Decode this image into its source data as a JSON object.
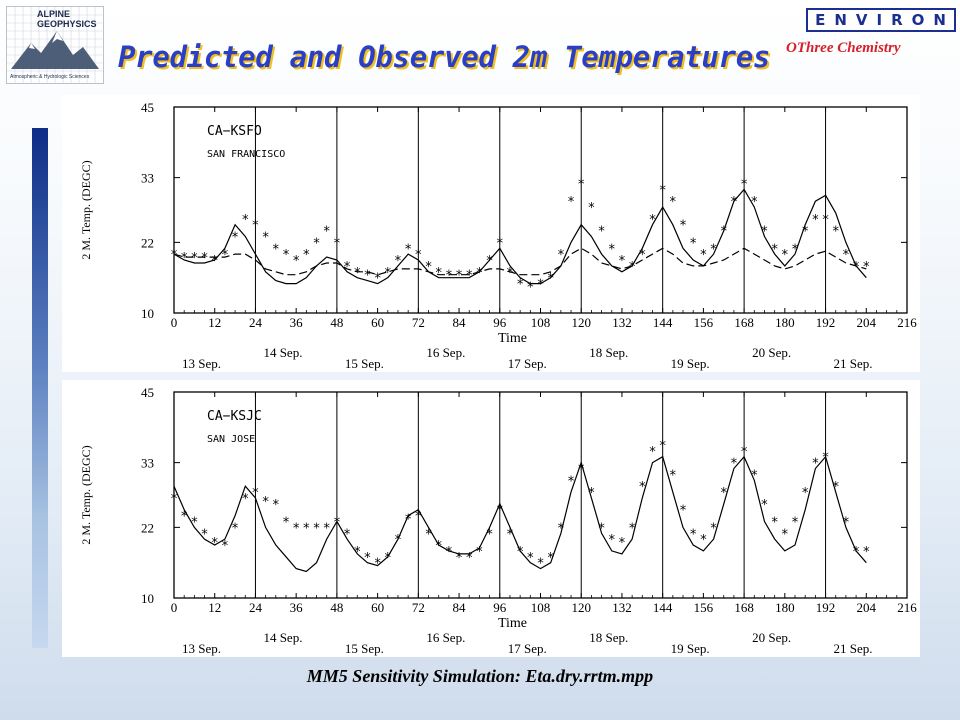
{
  "header": {
    "title": "Predicted and Observed 2m Temperatures",
    "left_logo_line1": "ALPINE",
    "left_logo_line2": "GEOPHYSICS",
    "left_logo_tagline": "Atmospheric & Hydrologic Sciences",
    "right_logo": "ENVIRON",
    "right_subtitle": "OThree Chemistry"
  },
  "footer": {
    "caption": "MM5 Sensitivity Simulation:  Eta.dry.rrtm.mpp"
  },
  "colors": {
    "title": "#2a3fc5",
    "title_shadow": "#f0bf20",
    "environ": "#1c2f8f",
    "othree": "#d6202a"
  },
  "chart_data": [
    {
      "type": "line",
      "station": "CA−KSFO",
      "station_name": "SAN FRANCISCO",
      "xlabel": "Time",
      "ylabel": "2 M. Temp. (DEGC)",
      "xlim": [
        0,
        216
      ],
      "ylim": [
        10,
        45
      ],
      "x_ticks": [
        0,
        12,
        24,
        36,
        48,
        60,
        72,
        84,
        96,
        108,
        120,
        132,
        144,
        156,
        168,
        180,
        192,
        204,
        216
      ],
      "y_ticks": [
        10,
        22,
        33,
        45
      ],
      "day_lines": [
        24,
        48,
        72,
        96,
        120,
        144,
        168,
        192
      ],
      "date_labels": [
        {
          "label": "13 Sep.",
          "x": 0,
          "row": 1
        },
        {
          "label": "14 Sep.",
          "x": 24,
          "row": 0
        },
        {
          "label": "15 Sep.",
          "x": 48,
          "row": 1
        },
        {
          "label": "16 Sep.",
          "x": 72,
          "row": 0
        },
        {
          "label": "17 Sep.",
          "x": 96,
          "row": 1
        },
        {
          "label": "18 Sep.",
          "x": 120,
          "row": 0
        },
        {
          "label": "19 Sep.",
          "x": 144,
          "row": 1
        },
        {
          "label": "20 Sep.",
          "x": 168,
          "row": 0
        },
        {
          "label": "21 Sep.",
          "x": 192,
          "row": 1
        }
      ],
      "series": [
        {
          "style": "solid",
          "x": [
            0,
            3,
            6,
            9,
            12,
            15,
            18,
            21,
            24,
            27,
            30,
            33,
            36,
            39,
            42,
            45,
            48,
            51,
            54,
            57,
            60,
            63,
            66,
            69,
            72,
            75,
            78,
            81,
            84,
            87,
            90,
            93,
            96,
            99,
            102,
            105,
            108,
            111,
            114,
            117,
            120,
            123,
            126,
            129,
            132,
            135,
            138,
            141,
            144,
            147,
            150,
            153,
            156,
            159,
            162,
            165,
            168,
            171,
            174,
            177,
            180,
            183,
            186,
            189,
            192,
            195,
            198,
            201,
            204
          ],
          "y": [
            20,
            19,
            18.5,
            18.5,
            19,
            21,
            25,
            23,
            20,
            17,
            15.5,
            15,
            15,
            16,
            18,
            19.5,
            19,
            17,
            16,
            15.5,
            15,
            16,
            18,
            20,
            19,
            17,
            16,
            16,
            16,
            16,
            17,
            19,
            21,
            18,
            16,
            15,
            15,
            16,
            18,
            22,
            25,
            23,
            20,
            18,
            17,
            18,
            21,
            25,
            28,
            25,
            21,
            19,
            18,
            20,
            24,
            29,
            31,
            28,
            23,
            20,
            18,
            20,
            25,
            29,
            30,
            27,
            22,
            18,
            16
          ]
        },
        {
          "style": "dashed",
          "x": [
            0,
            3,
            6,
            9,
            12,
            15,
            18,
            21,
            24,
            27,
            30,
            33,
            36,
            39,
            42,
            45,
            48,
            51,
            54,
            57,
            60,
            63,
            66,
            69,
            72,
            75,
            78,
            81,
            84,
            87,
            90,
            93,
            96,
            99,
            102,
            105,
            108,
            111,
            114,
            117,
            120,
            123,
            126,
            129,
            132,
            135,
            138,
            141,
            144,
            147,
            150,
            153,
            156,
            159,
            162,
            165,
            168,
            171,
            174,
            177,
            180,
            183,
            186,
            189,
            192,
            195,
            198,
            201,
            204
          ],
          "y": [
            20,
            19.5,
            19.5,
            19.5,
            19.5,
            19.5,
            20,
            20,
            19,
            17.5,
            17,
            16.5,
            16.5,
            17,
            18,
            18.5,
            18.5,
            17.5,
            17,
            17,
            16.5,
            17,
            17.5,
            17.5,
            17.5,
            17,
            16.5,
            16.5,
            16.5,
            16.5,
            17,
            17.5,
            17.5,
            17,
            16.5,
            16.5,
            16.5,
            17,
            18,
            20,
            21,
            20,
            18.5,
            18,
            17.5,
            18,
            19,
            20,
            21,
            20,
            18.5,
            18,
            18,
            18.5,
            19,
            20,
            21,
            20,
            19,
            18,
            17.5,
            18,
            19,
            20,
            20.5,
            19.5,
            18.5,
            18,
            17.5
          ]
        },
        {
          "style": "markers",
          "x": [
            0,
            3,
            6,
            9,
            12,
            15,
            18,
            21,
            24,
            27,
            30,
            33,
            36,
            39,
            42,
            45,
            48,
            51,
            54,
            57,
            60,
            63,
            66,
            69,
            72,
            75,
            78,
            81,
            84,
            87,
            90,
            93,
            96,
            99,
            102,
            105,
            108,
            111,
            114,
            117,
            120,
            123,
            126,
            129,
            132,
            135,
            138,
            141,
            144,
            147,
            150,
            153,
            156,
            159,
            162,
            165,
            168,
            171,
            174,
            177,
            180,
            183,
            186,
            189,
            192,
            195,
            198,
            201,
            204
          ],
          "y": [
            20,
            19.5,
            19.5,
            19.5,
            19,
            20,
            23,
            26,
            25,
            23,
            21,
            20,
            19,
            20,
            22,
            24,
            22,
            18,
            17,
            16.5,
            16,
            17,
            19,
            21,
            20,
            18,
            17,
            16.5,
            16.5,
            16.5,
            17,
            19,
            22,
            17,
            15,
            14.5,
            15,
            16,
            20,
            29,
            32,
            28,
            24,
            21,
            19,
            18,
            20,
            26,
            31,
            29,
            25,
            22,
            20,
            21,
            24,
            29,
            32,
            29,
            24,
            21,
            20,
            21,
            24,
            26,
            26,
            24,
            20,
            18,
            18
          ]
        }
      ]
    },
    {
      "type": "line",
      "station": "CA−KSJC",
      "station_name": "SAN JOSE",
      "xlabel": "Time",
      "ylabel": "2 M. Temp. (DEGC)",
      "xlim": [
        0,
        216
      ],
      "ylim": [
        10,
        45
      ],
      "x_ticks": [
        0,
        12,
        24,
        36,
        48,
        60,
        72,
        84,
        96,
        108,
        120,
        132,
        144,
        156,
        168,
        180,
        192,
        204,
        216
      ],
      "y_ticks": [
        10,
        22,
        33,
        45
      ],
      "day_lines": [
        24,
        48,
        72,
        96,
        120,
        144,
        168,
        192
      ],
      "date_labels": [
        {
          "label": "13 Sep.",
          "x": 0,
          "row": 1
        },
        {
          "label": "14 Sep.",
          "x": 24,
          "row": 0
        },
        {
          "label": "15 Sep.",
          "x": 48,
          "row": 1
        },
        {
          "label": "16 Sep.",
          "x": 72,
          "row": 0
        },
        {
          "label": "17 Sep.",
          "x": 96,
          "row": 1
        },
        {
          "label": "18 Sep.",
          "x": 120,
          "row": 0
        },
        {
          "label": "19 Sep.",
          "x": 144,
          "row": 1
        },
        {
          "label": "20 Sep.",
          "x": 168,
          "row": 0
        },
        {
          "label": "21 Sep.",
          "x": 192,
          "row": 1
        }
      ],
      "series": [
        {
          "style": "solid",
          "x": [
            0,
            3,
            6,
            9,
            12,
            15,
            18,
            21,
            24,
            27,
            30,
            33,
            36,
            39,
            42,
            45,
            48,
            51,
            54,
            57,
            60,
            63,
            66,
            69,
            72,
            75,
            78,
            81,
            84,
            87,
            90,
            93,
            96,
            99,
            102,
            105,
            108,
            111,
            114,
            117,
            120,
            123,
            126,
            129,
            132,
            135,
            138,
            141,
            144,
            147,
            150,
            153,
            156,
            159,
            162,
            165,
            168,
            171,
            174,
            177,
            180,
            183,
            186,
            189,
            192,
            195,
            198,
            201,
            204
          ],
          "y": [
            29,
            25,
            22,
            20,
            19,
            20,
            24,
            29,
            27,
            22,
            19,
            17,
            15,
            14.5,
            16,
            20,
            23,
            20,
            17.5,
            16,
            15.5,
            17,
            20,
            24,
            25,
            22,
            19,
            18,
            17.5,
            17.5,
            18.5,
            22,
            26,
            22,
            18,
            16,
            15,
            16,
            21,
            28,
            33,
            27,
            21,
            18,
            17.5,
            20,
            27,
            33,
            34,
            28,
            22,
            19,
            18,
            20,
            26,
            32,
            34,
            30,
            23,
            20,
            18,
            19,
            25,
            32,
            34,
            28,
            22,
            18,
            16
          ]
        },
        {
          "style": "markers",
          "x": [
            0,
            3,
            6,
            9,
            12,
            15,
            18,
            21,
            24,
            27,
            30,
            33,
            36,
            39,
            42,
            45,
            48,
            51,
            54,
            57,
            60,
            63,
            66,
            69,
            72,
            75,
            78,
            81,
            84,
            87,
            90,
            93,
            96,
            99,
            102,
            105,
            108,
            111,
            114,
            117,
            120,
            123,
            126,
            129,
            132,
            135,
            138,
            141,
            144,
            147,
            150,
            153,
            156,
            159,
            162,
            165,
            168,
            171,
            174,
            177,
            180,
            183,
            186,
            189,
            192,
            195,
            198,
            201,
            204
          ],
          "y": [
            27,
            24,
            23,
            21,
            19.5,
            19,
            22,
            27,
            28,
            26.5,
            26,
            23,
            22,
            22,
            22,
            22,
            23,
            21,
            18,
            17,
            16,
            17,
            20,
            23.5,
            24,
            21,
            19,
            18,
            17,
            17,
            18,
            21,
            25,
            21,
            18,
            17,
            16,
            17,
            22,
            30,
            32,
            28,
            22,
            20,
            19.5,
            22,
            29,
            35,
            36,
            31,
            25,
            21,
            20,
            22,
            28,
            33,
            35,
            31,
            26,
            23,
            21,
            23,
            28,
            33,
            34,
            29,
            23,
            18,
            18
          ]
        }
      ]
    }
  ]
}
